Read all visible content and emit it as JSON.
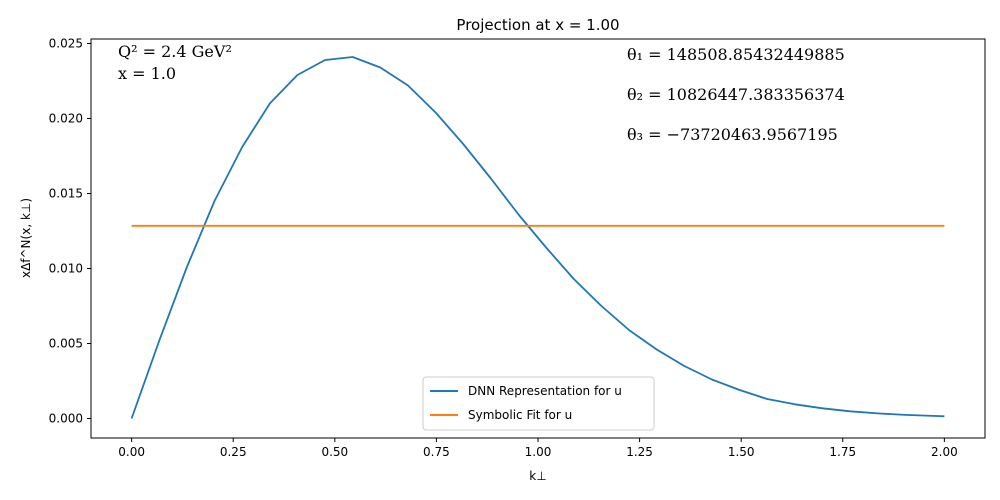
{
  "chart_data": {
    "type": "line",
    "title": "Projection at x = 1.00",
    "xlabel": "k⊥",
    "ylabel": "xΔf^N(x, k⊥)",
    "xlim": [
      -0.1,
      2.1
    ],
    "ylim": [
      -0.0013,
      0.0253
    ],
    "xticks": [
      0.0,
      0.25,
      0.5,
      0.75,
      1.0,
      1.25,
      1.5,
      1.75,
      2.0
    ],
    "xtick_labels": [
      "0.00",
      "0.25",
      "0.50",
      "0.75",
      "1.00",
      "1.25",
      "1.50",
      "1.75",
      "2.00"
    ],
    "yticks": [
      0.0,
      0.005,
      0.01,
      0.015,
      0.02,
      0.025
    ],
    "ytick_labels": [
      "0.000",
      "0.005",
      "0.010",
      "0.015",
      "0.020",
      "0.025"
    ],
    "grid": false,
    "legend_position": "lower-center",
    "series": [
      {
        "name": "DNN Representation for u",
        "color": "#1f77b4",
        "x": [
          0.0,
          0.068,
          0.136,
          0.204,
          0.272,
          0.34,
          0.408,
          0.476,
          0.544,
          0.612,
          0.68,
          0.748,
          0.816,
          0.884,
          0.952,
          1.02,
          1.088,
          1.156,
          1.224,
          1.292,
          1.36,
          1.428,
          1.496,
          1.564,
          1.632,
          1.7,
          1.768,
          1.836,
          1.904,
          1.972,
          2.0
        ],
        "y": [
          0.0,
          0.0052,
          0.0101,
          0.0145,
          0.0181,
          0.021,
          0.0229,
          0.0239,
          0.0241,
          0.0234,
          0.0222,
          0.0204,
          0.0183,
          0.016,
          0.0136,
          0.0114,
          0.0093,
          0.0075,
          0.0059,
          0.0046,
          0.0035,
          0.0026,
          0.0019,
          0.0013,
          0.00095,
          0.00068,
          0.00048,
          0.00034,
          0.00024,
          0.00017,
          0.00015
        ]
      },
      {
        "name": "Symbolic Fit for u",
        "color": "#ff7f0e",
        "x": [
          0.0,
          2.0
        ],
        "y": [
          0.01285,
          0.01285
        ]
      }
    ],
    "annotations": {
      "q2": "Q² = 2.4 GeV²",
      "x_value": "x = 1.0",
      "theta1": "θ₁ = 148508.85432449885",
      "theta2": "θ₂ = 10826447.383356374",
      "theta3": "θ₃ = −73720463.9567195"
    }
  }
}
